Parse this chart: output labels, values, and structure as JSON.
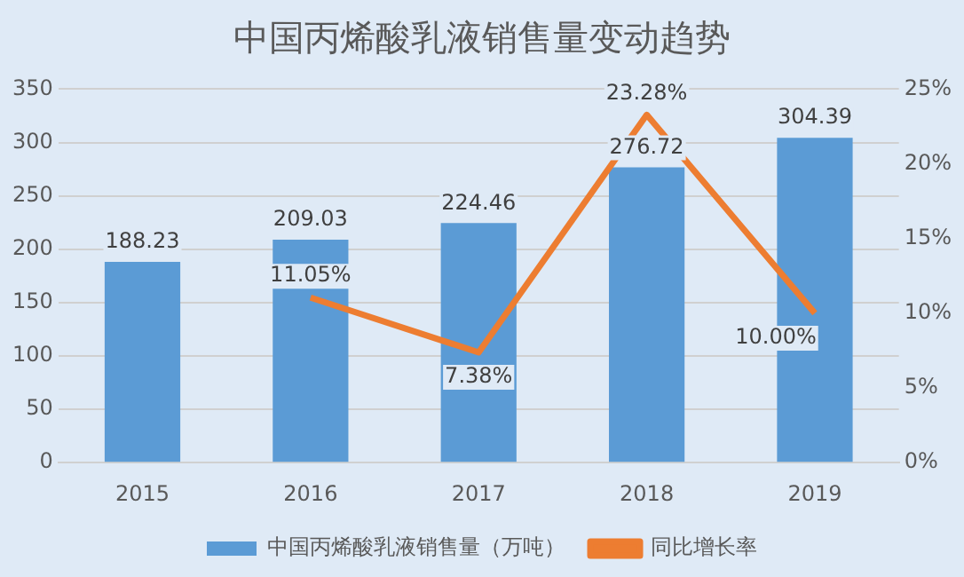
{
  "chart_data": {
    "type": "bar",
    "title": "中国丙烯酸乳液销售量变动趋势",
    "categories": [
      "2015",
      "2016",
      "2017",
      "2018",
      "2019"
    ],
    "series": [
      {
        "name": "中国丙烯酸乳液销售量（万吨）",
        "color": "#5b9bd5",
        "values": [
          188.23,
          209.03,
          224.46,
          276.72,
          304.39
        ],
        "value_labels": [
          "188.23",
          "209.03",
          "224.46",
          "276.72",
          "304.39"
        ]
      },
      {
        "name": "同比增长率",
        "type": "line",
        "axis": "y2",
        "color": "#ed7d31",
        "values": [
          null,
          11.05,
          7.38,
          23.28,
          10.0
        ],
        "value_labels": [
          null,
          "11.05%",
          "7.38%",
          "23.28%",
          "10.00%"
        ]
      }
    ],
    "ylim": [
      0,
      350
    ],
    "yticks": [
      0,
      50,
      100,
      150,
      200,
      250,
      300,
      350
    ],
    "y2lim": [
      0,
      25
    ],
    "y2ticks": [
      {
        "value": 0,
        "label": "0%"
      },
      {
        "value": 5,
        "label": "5%"
      },
      {
        "value": 10,
        "label": "10%"
      },
      {
        "value": 15,
        "label": "15%"
      },
      {
        "value": 20,
        "label": "20%"
      },
      {
        "value": 25,
        "label": "25%"
      }
    ],
    "grid": "y",
    "legend": "bottom",
    "marker": "none",
    "line_style": "solid"
  }
}
